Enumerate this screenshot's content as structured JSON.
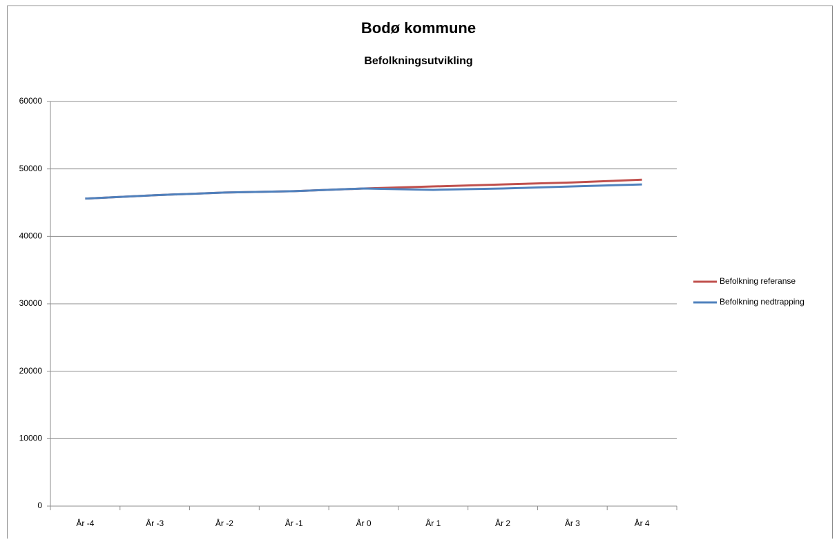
{
  "chart_data": {
    "type": "line",
    "title": "Bodø kommune",
    "subtitle": "Befolkningsutvikling",
    "categories": [
      "År -4",
      "År -3",
      "År -2",
      "År -1",
      "År 0",
      "År 1",
      "År 2",
      "År 3",
      "År 4"
    ],
    "series": [
      {
        "name": "Befolkning referanse",
        "color": "#c0504d",
        "values": [
          45600,
          46100,
          46500,
          46700,
          47100,
          47400,
          47700,
          48000,
          48400
        ]
      },
      {
        "name": "Befolkning nedtrapping",
        "color": "#4f81bd",
        "values": [
          45600,
          46100,
          46500,
          46700,
          47100,
          46900,
          47100,
          47400,
          47700
        ]
      }
    ],
    "ylim": [
      0,
      60000
    ],
    "yticks": [
      0,
      10000,
      20000,
      30000,
      40000,
      50000,
      60000
    ],
    "grid": true,
    "legend": "right"
  }
}
